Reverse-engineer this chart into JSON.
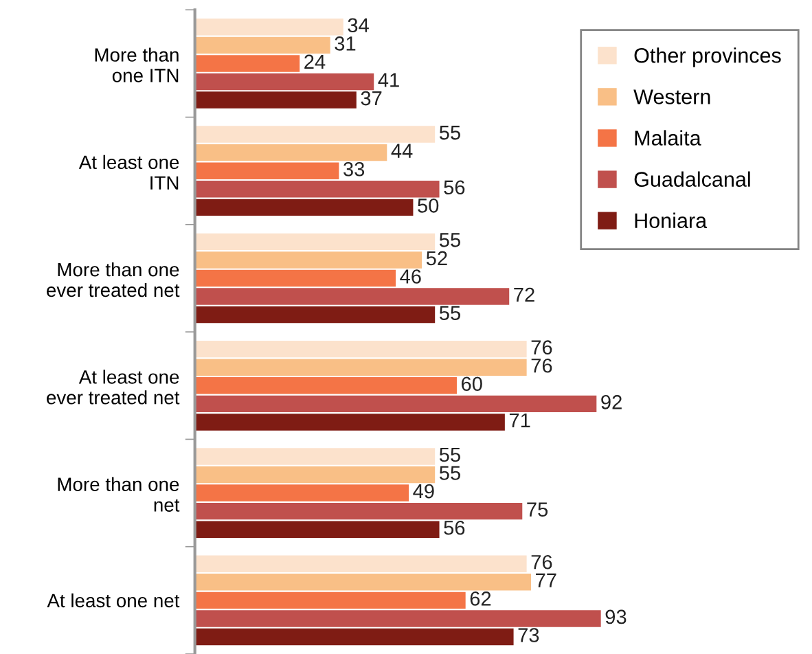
{
  "chart_data": {
    "type": "bar",
    "orientation": "horizontal",
    "data_labels": true,
    "legend": "top right",
    "grid": false,
    "categories": [
      "More than\none ITN",
      "At least one\nITN",
      "More than one\never treated net",
      "At least one\never treated net",
      "More than one\nnet",
      "At least one net"
    ],
    "series": [
      {
        "name": "Other provinces",
        "color": "#fce2cc",
        "values": [
          34,
          55,
          55,
          76,
          55,
          76
        ]
      },
      {
        "name": "Western",
        "color": "#f9bf86",
        "values": [
          31,
          44,
          52,
          76,
          55,
          77
        ]
      },
      {
        "name": "Malaita",
        "color": "#f47446",
        "values": [
          24,
          33,
          46,
          60,
          49,
          62
        ]
      },
      {
        "name": "Guadalcanal",
        "color": "#c0504d",
        "values": [
          41,
          56,
          72,
          92,
          75,
          93
        ]
      },
      {
        "name": "Honiara",
        "color": "#7f1c14",
        "values": [
          37,
          50,
          55,
          71,
          56,
          73
        ]
      }
    ]
  }
}
